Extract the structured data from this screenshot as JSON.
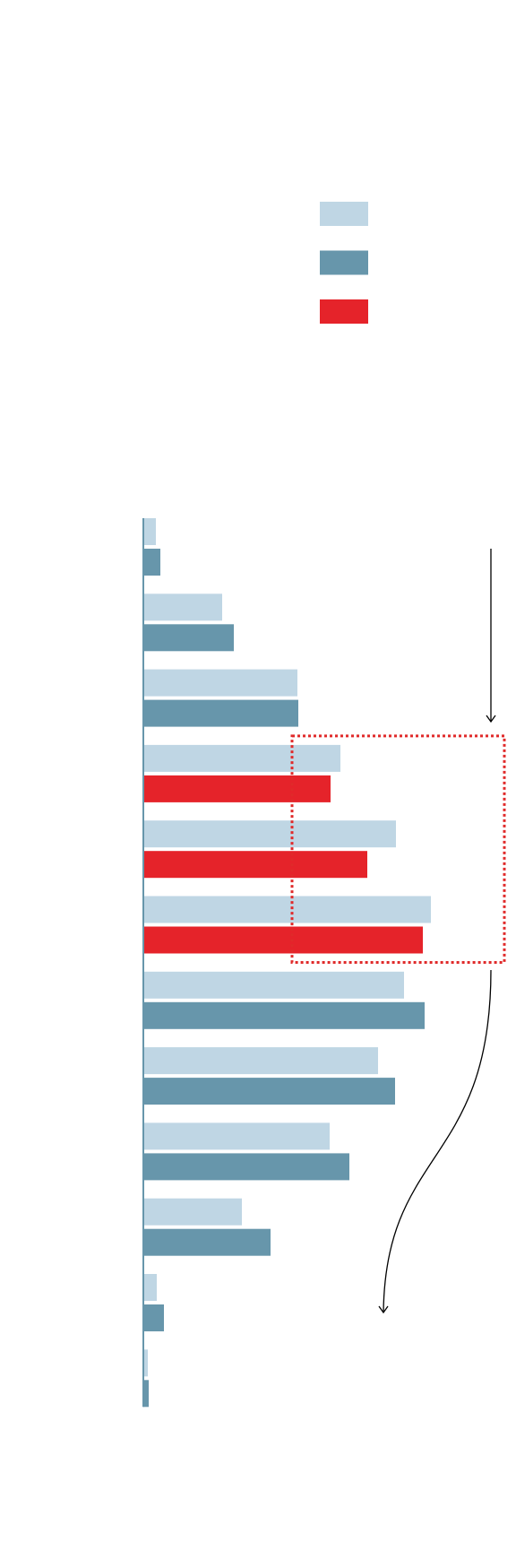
{
  "chart_data": {
    "type": "bar",
    "orientation": "horizontal",
    "title": "",
    "xlabel": "",
    "ylabel": "",
    "categories": [
      "",
      "",
      "",
      "",
      "",
      "",
      "",
      "",
      "",
      "",
      "",
      ""
    ],
    "series": [
      {
        "values": [
          14,
          88,
          172,
          220,
          282,
          321,
          291,
          262,
          208,
          110,
          15,
          5
        ]
      },
      {
        "values": [
          19,
          101,
          173,
          209,
          250,
          312,
          314,
          281,
          230,
          142,
          23,
          6
        ]
      }
    ],
    "highlighted_indices": [
      3,
      4,
      5
    ],
    "legend": {
      "placement": "top-right",
      "entries": [
        "",
        "",
        ""
      ]
    },
    "colors": {
      "series_1": "#bfd6e4",
      "series_2": "#6796ab",
      "highlight": "#e5232a",
      "highlight_box": "#e02a2a",
      "axis": "#6796ab",
      "arrow": "#000000"
    },
    "grid": false
  }
}
